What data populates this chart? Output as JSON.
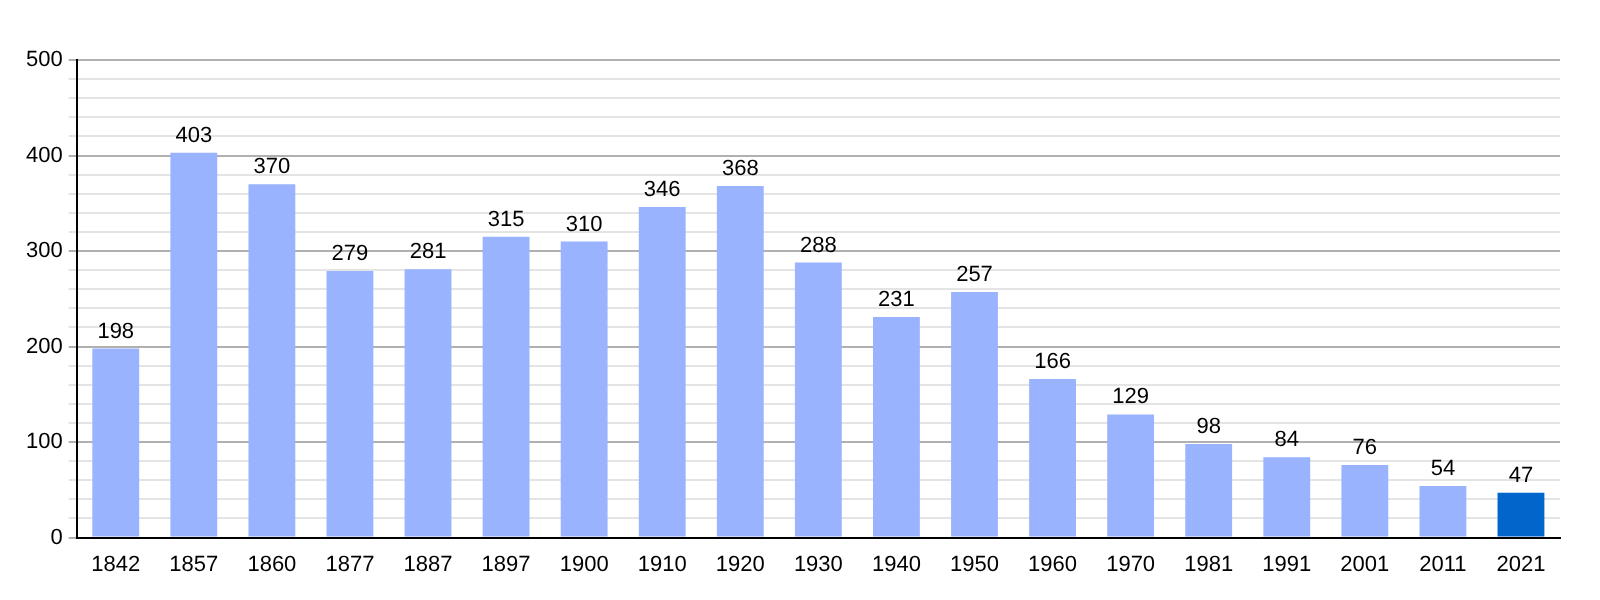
{
  "chart_data": {
    "type": "bar",
    "categories": [
      "1842",
      "1857",
      "1860",
      "1877",
      "1887",
      "1897",
      "1900",
      "1910",
      "1920",
      "1930",
      "1940",
      "1950",
      "1960",
      "1970",
      "1981",
      "1991",
      "2001",
      "2011",
      "2021"
    ],
    "values": [
      198,
      403,
      370,
      279,
      281,
      315,
      310,
      346,
      368,
      288,
      231,
      257,
      166,
      129,
      98,
      84,
      76,
      54,
      47
    ],
    "colors": [
      "#99b3ff",
      "#99b3ff",
      "#99b3ff",
      "#99b3ff",
      "#99b3ff",
      "#99b3ff",
      "#99b3ff",
      "#99b3ff",
      "#99b3ff",
      "#99b3ff",
      "#99b3ff",
      "#99b3ff",
      "#99b3ff",
      "#99b3ff",
      "#99b3ff",
      "#99b3ff",
      "#99b3ff",
      "#99b3ff",
      "#0066cc"
    ],
    "ylim": [
      0,
      500
    ],
    "yticks": [
      0,
      {
        "value": 20,
        "label": null
      },
      {
        "value": 40,
        "label": null
      },
      {
        "value": 60,
        "label": null
      },
      {
        "value": 80,
        "label": null
      },
      100,
      {
        "value": 120,
        "label": null
      },
      {
        "value": 140,
        "label": null
      },
      {
        "value": 160,
        "label": null
      },
      {
        "value": 180,
        "label": null
      },
      200,
      {
        "value": 220,
        "label": null
      },
      {
        "value": 240,
        "label": null
      },
      {
        "value": 260,
        "label": null
      },
      {
        "value": 280,
        "label": null
      },
      300,
      {
        "value": 320,
        "label": null
      },
      {
        "value": 340,
        "label": null
      },
      {
        "value": 360,
        "label": null
      },
      {
        "value": 380,
        "label": null
      },
      400,
      {
        "value": 420,
        "label": null
      },
      {
        "value": 440,
        "label": null
      },
      {
        "value": 460,
        "label": null
      },
      {
        "value": 480,
        "label": null
      },
      500
    ],
    "grid": "y",
    "data_labels": true
  }
}
